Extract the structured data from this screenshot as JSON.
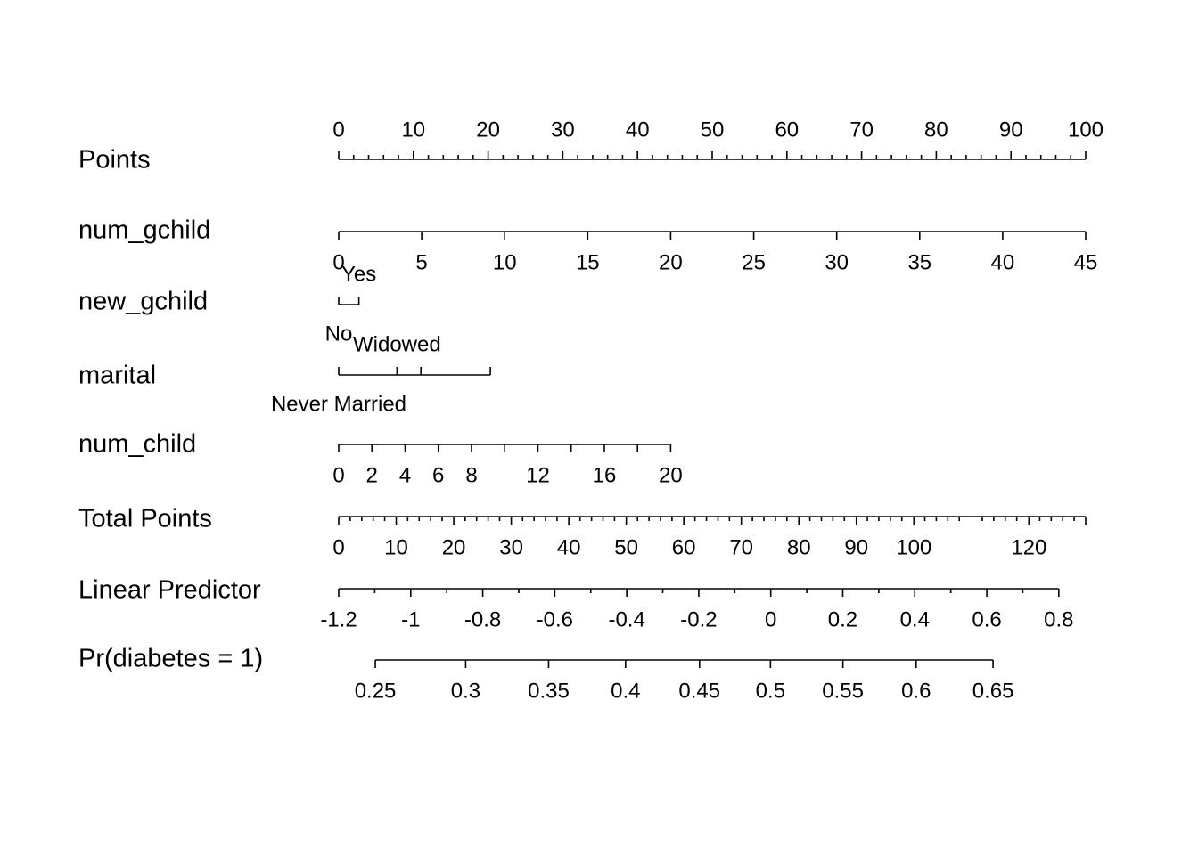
{
  "chart_data": {
    "type": "nomogram",
    "title": "",
    "points_scale": {
      "min": 0,
      "max": 100
    },
    "rows": [
      {
        "label": "Points",
        "kind": "continuous",
        "labels_above": true,
        "ticks": [
          {
            "value": 0,
            "points": 0,
            "label": "0"
          },
          {
            "value": 10,
            "points": 10,
            "label": "10"
          },
          {
            "value": 20,
            "points": 20,
            "label": "20"
          },
          {
            "value": 30,
            "points": 30,
            "label": "30"
          },
          {
            "value": 40,
            "points": 40,
            "label": "40"
          },
          {
            "value": 50,
            "points": 50,
            "label": "50"
          },
          {
            "value": 60,
            "points": 60,
            "label": "60"
          },
          {
            "value": 70,
            "points": 70,
            "label": "70"
          },
          {
            "value": 80,
            "points": 80,
            "label": "80"
          },
          {
            "value": 90,
            "points": 90,
            "label": "90"
          },
          {
            "value": 100,
            "points": 100,
            "label": "100"
          }
        ],
        "minor_step_points": 2
      },
      {
        "label": "num_gchild",
        "kind": "continuous",
        "labels_above": false,
        "ticks": [
          {
            "value": 0,
            "points": 0,
            "label": "0"
          },
          {
            "value": 5,
            "points": 11.11,
            "label": "5"
          },
          {
            "value": 10,
            "points": 22.22,
            "label": "10"
          },
          {
            "value": 15,
            "points": 33.33,
            "label": "15"
          },
          {
            "value": 20,
            "points": 44.44,
            "label": "20"
          },
          {
            "value": 25,
            "points": 55.56,
            "label": "25"
          },
          {
            "value": 30,
            "points": 66.67,
            "label": "30"
          },
          {
            "value": 35,
            "points": 77.78,
            "label": "35"
          },
          {
            "value": 40,
            "points": 88.89,
            "label": "40"
          },
          {
            "value": 45,
            "points": 100,
            "label": "45"
          }
        ]
      },
      {
        "label": "new_gchild",
        "kind": "categorical",
        "levels": [
          {
            "label": "No",
            "points": 0,
            "label_side": "below"
          },
          {
            "label": "Yes",
            "points": 2.7,
            "label_side": "above"
          }
        ]
      },
      {
        "label": "marital",
        "kind": "categorical",
        "levels": [
          {
            "label": "Never Married",
            "points": 0,
            "label_side": "below"
          },
          {
            "label": "Widowed",
            "points": 7.8,
            "label_side": "above"
          },
          {
            "label": "",
            "points": 11,
            "label_side": "none"
          },
          {
            "label": "",
            "points": 20.3,
            "label_side": "none"
          }
        ]
      },
      {
        "label": "num_child",
        "kind": "continuous",
        "labels_above": false,
        "ticks": [
          {
            "value": 0,
            "points": 0,
            "label": "0"
          },
          {
            "value": 2,
            "points": 4.44,
            "label": "2"
          },
          {
            "value": 4,
            "points": 8.89,
            "label": "4"
          },
          {
            "value": 6,
            "points": 13.33,
            "label": "6"
          },
          {
            "value": 8,
            "points": 17.78,
            "label": "8"
          },
          {
            "value": 10,
            "points": 22.22,
            "label": ""
          },
          {
            "value": 12,
            "points": 26.67,
            "label": "12"
          },
          {
            "value": 14,
            "points": 31.11,
            "label": ""
          },
          {
            "value": 16,
            "points": 35.56,
            "label": "16"
          },
          {
            "value": 18,
            "points": 40.0,
            "label": ""
          },
          {
            "value": 20,
            "points": 44.44,
            "label": "20"
          }
        ]
      },
      {
        "label": "Total Points",
        "kind": "continuous",
        "labels_above": false,
        "ticks": [
          {
            "value": 0,
            "points": 0,
            "label": "0"
          },
          {
            "value": 10,
            "points": 7.7,
            "label": "10"
          },
          {
            "value": 20,
            "points": 15.4,
            "label": "20"
          },
          {
            "value": 30,
            "points": 23.1,
            "label": "30"
          },
          {
            "value": 40,
            "points": 30.8,
            "label": "40"
          },
          {
            "value": 50,
            "points": 38.5,
            "label": "50"
          },
          {
            "value": 60,
            "points": 46.2,
            "label": "60"
          },
          {
            "value": 70,
            "points": 53.9,
            "label": "70"
          },
          {
            "value": 80,
            "points": 61.6,
            "label": "80"
          },
          {
            "value": 90,
            "points": 69.3,
            "label": "90"
          },
          {
            "value": 100,
            "points": 77.0,
            "label": "100"
          },
          {
            "value": 120,
            "points": 92.4,
            "label": "120"
          },
          {
            "value": 130,
            "points": 100,
            "label": ""
          }
        ],
        "minor_step_value": 2,
        "max_value": 130
      },
      {
        "label": "Linear Predictor",
        "kind": "continuous",
        "labels_above": false,
        "ticks": [
          {
            "value": -1.2,
            "points": 0,
            "label": "-1.2"
          },
          {
            "value": -1.1,
            "points": 4.82,
            "label": ""
          },
          {
            "value": -1.0,
            "points": 9.64,
            "label": "-1"
          },
          {
            "value": -0.9,
            "points": 14.46,
            "label": ""
          },
          {
            "value": -0.8,
            "points": 19.28,
            "label": "-0.8"
          },
          {
            "value": -0.7,
            "points": 24.1,
            "label": ""
          },
          {
            "value": -0.6,
            "points": 28.92,
            "label": "-0.6"
          },
          {
            "value": -0.5,
            "points": 33.74,
            "label": ""
          },
          {
            "value": -0.4,
            "points": 38.56,
            "label": "-0.4"
          },
          {
            "value": -0.3,
            "points": 43.38,
            "label": ""
          },
          {
            "value": -0.2,
            "points": 48.2,
            "label": "-0.2"
          },
          {
            "value": -0.1,
            "points": 53.02,
            "label": ""
          },
          {
            "value": 0.0,
            "points": 57.84,
            "label": "0"
          },
          {
            "value": 0.1,
            "points": 62.66,
            "label": ""
          },
          {
            "value": 0.2,
            "points": 67.48,
            "label": "0.2"
          },
          {
            "value": 0.3,
            "points": 72.3,
            "label": ""
          },
          {
            "value": 0.4,
            "points": 77.12,
            "label": "0.4"
          },
          {
            "value": 0.5,
            "points": 81.94,
            "label": ""
          },
          {
            "value": 0.6,
            "points": 86.76,
            "label": "0.6"
          },
          {
            "value": 0.7,
            "points": 91.58,
            "label": ""
          },
          {
            "value": 0.8,
            "points": 96.4,
            "label": "0.8"
          }
        ]
      },
      {
        "label": "Pr(diabetes = 1)",
        "kind": "continuous",
        "labels_above": false,
        "ticks": [
          {
            "value": 0.25,
            "points": 4.9,
            "label": "0.25"
          },
          {
            "value": 0.3,
            "points": 17.0,
            "label": "0.3"
          },
          {
            "value": 0.35,
            "points": 28.1,
            "label": "0.35"
          },
          {
            "value": 0.4,
            "points": 38.4,
            "label": "0.4"
          },
          {
            "value": 0.45,
            "points": 48.3,
            "label": "0.45"
          },
          {
            "value": 0.5,
            "points": 57.8,
            "label": "0.5"
          },
          {
            "value": 0.55,
            "points": 67.5,
            "label": "0.55"
          },
          {
            "value": 0.6,
            "points": 77.3,
            "label": "0.6"
          },
          {
            "value": 0.65,
            "points": 87.6,
            "label": "0.65"
          }
        ]
      }
    ]
  }
}
